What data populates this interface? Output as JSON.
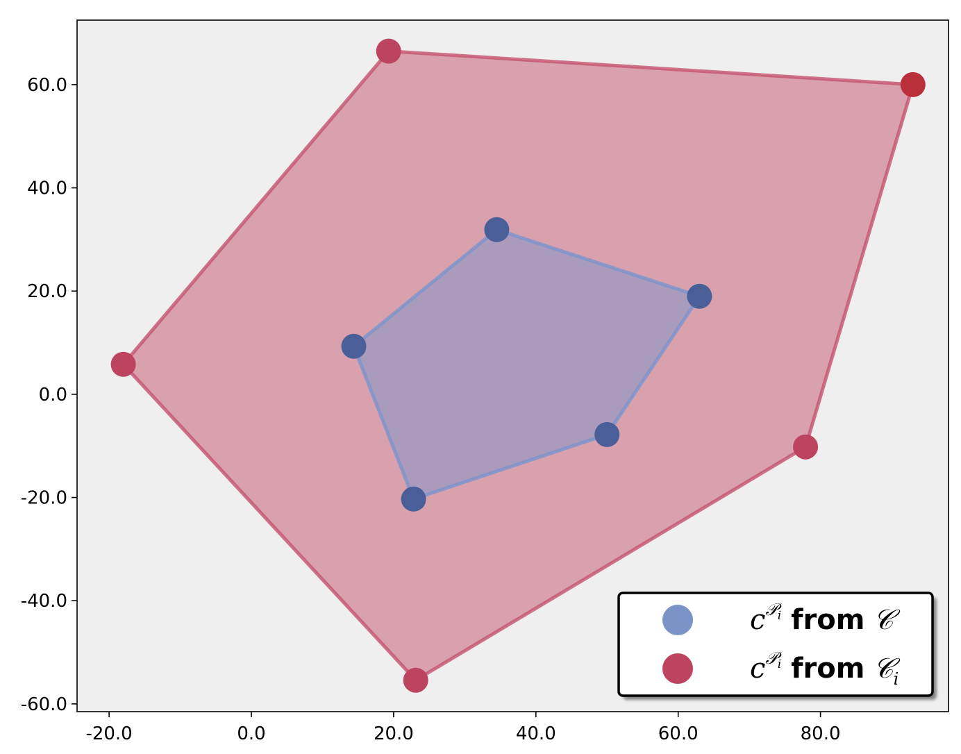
{
  "chart_data": {
    "type": "scatter",
    "title": "",
    "xlabel": "",
    "ylabel": "",
    "xlim": [
      -24.5,
      98.0
    ],
    "ylim": [
      -61.5,
      72.5
    ],
    "xticks": [
      -20,
      0,
      20,
      40,
      60,
      80
    ],
    "yticks": [
      -60,
      -40,
      -20,
      0,
      20,
      40,
      60
    ],
    "xtick_labels": [
      "-20.0",
      "0.0",
      "20.0",
      "40.0",
      "60.0",
      "80.0"
    ],
    "ytick_labels": [
      "-60.0",
      "-40.0",
      "-20.0",
      "0.0",
      "20.0",
      "40.0",
      "60.0"
    ],
    "grid": false,
    "background": "#efefef",
    "legend_position": "lower-right",
    "series": [
      {
        "key": "outer",
        "legend_label": {
          "prefix": "c",
          "superscript": "𝒫",
          "sub": "i",
          "word": "from",
          "set": "𝒞",
          "set_sub": "i"
        },
        "color": "#bc445e",
        "fill_color": "#c4536e",
        "points": [
          {
            "x": -18.0,
            "y": 5.8
          },
          {
            "x": 19.3,
            "y": 66.5
          },
          {
            "x": 93.0,
            "y": 60.0
          },
          {
            "x": 77.9,
            "y": -10.2
          },
          {
            "x": 23.1,
            "y": -55.4
          }
        ],
        "highlight_point_color": "#bb2f3a"
      },
      {
        "key": "inner",
        "legend_label": {
          "prefix": "c",
          "superscript": "𝒫",
          "sub": "i",
          "word": "from",
          "set": "𝒞",
          "set_sub": ""
        },
        "color": "#4a5f98",
        "legend_marker_color": "#7a94c8",
        "fill_color": "#7b95cc",
        "points": [
          {
            "x": 14.4,
            "y": 9.3
          },
          {
            "x": 34.5,
            "y": 31.9
          },
          {
            "x": 63.0,
            "y": 19.0
          },
          {
            "x": 50.0,
            "y": -7.8
          },
          {
            "x": 22.8,
            "y": -20.3
          }
        ]
      }
    ]
  }
}
